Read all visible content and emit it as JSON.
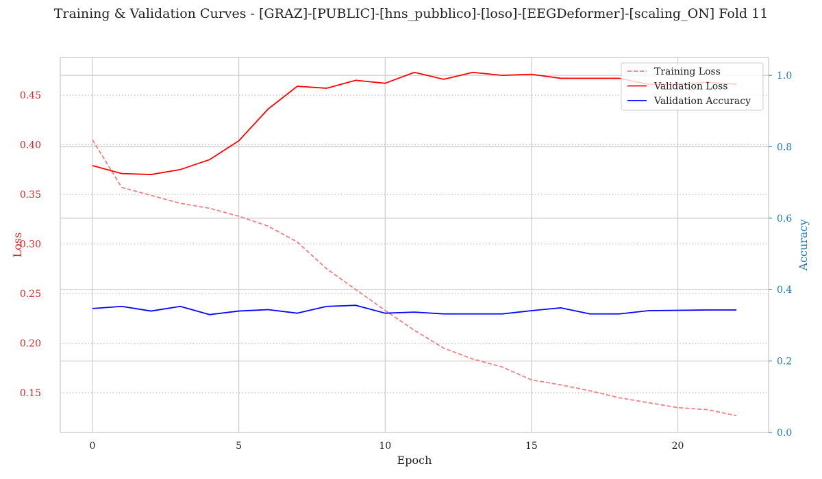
{
  "chart_data": {
    "type": "line",
    "title": "Training & Validation Curves - [GRAZ]-[PUBLIC]-[hns_pubblico]-[loso]-[EEGDeformer]-[scaling_ON] Fold 11",
    "xlabel": "Epoch",
    "ylabel_left": "Loss",
    "ylabel_right": "Accuracy",
    "x": [
      0,
      1,
      2,
      3,
      4,
      5,
      6,
      7,
      8,
      9,
      10,
      11,
      12,
      13,
      14,
      15,
      16,
      17,
      18,
      19,
      20,
      21,
      22
    ],
    "xlim": [
      -1.1,
      23.1
    ],
    "x_ticks": [
      0,
      5,
      10,
      15,
      20
    ],
    "ylim_left": [
      0.11,
      0.488
    ],
    "y_ticks_left": [
      0.15,
      0.2,
      0.25,
      0.3,
      0.35,
      0.4,
      0.45
    ],
    "y_tick_labels_left": [
      "0.15",
      "0.20",
      "0.25",
      "0.30",
      "0.35",
      "0.40",
      "0.45"
    ],
    "ylim_right": [
      0.0,
      1.05
    ],
    "y_ticks_right": [
      0.0,
      0.2,
      0.4,
      0.6,
      0.8,
      1.0
    ],
    "y_tick_labels_right": [
      "0.0",
      "0.2",
      "0.4",
      "0.6",
      "0.8",
      "1.0"
    ],
    "left_axis_color": "#d62728",
    "right_axis_color": "#1f77b4",
    "grid": true,
    "legend_position": "top-right",
    "series": [
      {
        "name": "Training Loss",
        "axis": "left",
        "color": "#f08080",
        "style": "dashed",
        "values": [
          0.405,
          0.357,
          0.349,
          0.341,
          0.336,
          0.328,
          0.318,
          0.302,
          0.275,
          0.254,
          0.233,
          0.213,
          0.195,
          0.184,
          0.176,
          0.163,
          0.158,
          0.152,
          0.145,
          0.14,
          0.135,
          0.133,
          0.127
        ]
      },
      {
        "name": "Validation Loss",
        "axis": "left",
        "color": "#ff0000",
        "style": "solid",
        "values": [
          0.379,
          0.371,
          0.37,
          0.375,
          0.385,
          0.404,
          0.436,
          0.459,
          0.457,
          0.465,
          0.462,
          0.473,
          0.466,
          0.473,
          0.47,
          0.471,
          0.467,
          0.467,
          0.467,
          0.461,
          0.461,
          0.463,
          0.461
        ]
      },
      {
        "name": "Validation Accuracy",
        "axis": "right",
        "color": "#0000ff",
        "style": "solid",
        "values": [
          0.347,
          0.353,
          0.34,
          0.353,
          0.33,
          0.34,
          0.344,
          0.334,
          0.353,
          0.356,
          0.334,
          0.337,
          0.332,
          0.332,
          0.332,
          0.341,
          0.349,
          0.332,
          0.332,
          0.341,
          0.342,
          0.343,
          0.343
        ]
      }
    ]
  }
}
